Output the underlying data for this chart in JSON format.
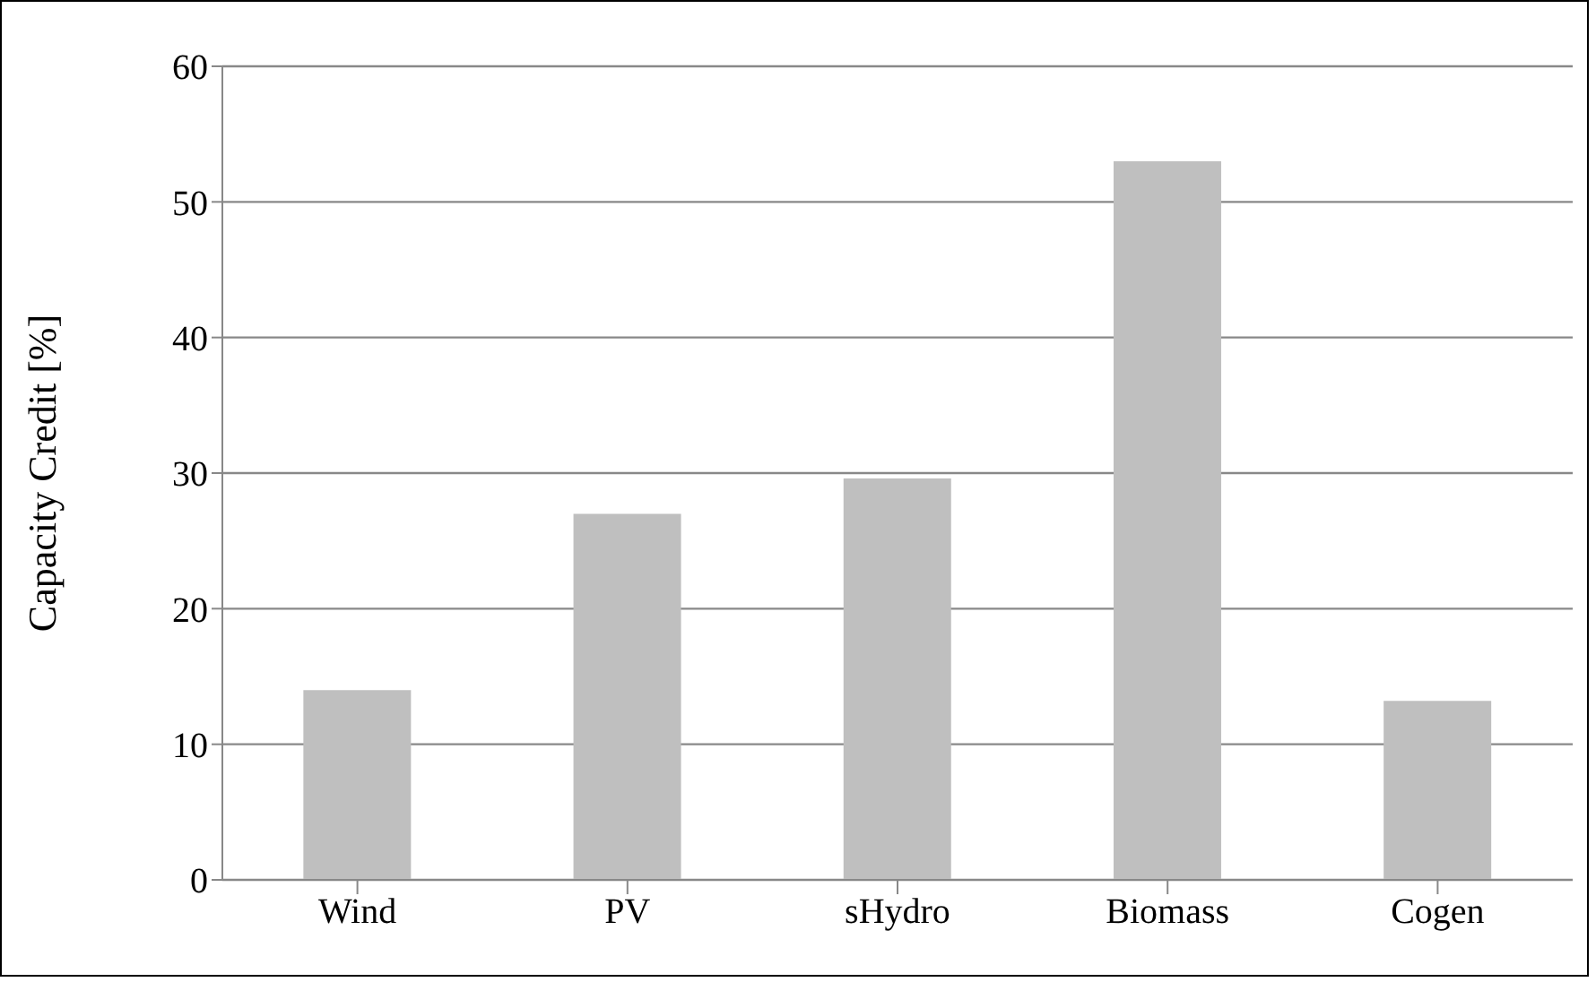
{
  "chart_data": {
    "type": "bar",
    "ylabel": "Capacity Credit [%]",
    "categories": [
      "Wind",
      "PV",
      "sHydro",
      "Biomass",
      "Cogen"
    ],
    "values": [
      14,
      27,
      29.6,
      53,
      13.2
    ],
    "color": "#bfbfbf",
    "ylim": [
      0,
      60
    ],
    "yticks": [
      0,
      10,
      20,
      30,
      40,
      50,
      60
    ],
    "grid": "y",
    "legend": false
  }
}
